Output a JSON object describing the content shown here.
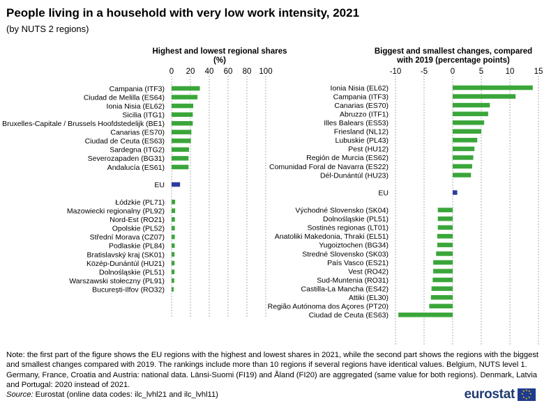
{
  "title": "People living in a household with very low work intensity, 2021",
  "subtitle": "(by NUTS  2 regions)",
  "note": "Note: the first part of the figure shows the EU regions with the highest and lowest shares in 2021, while the second part shows the regions with the biggest and smallest changes compared with 2019. The rankings include more than 10 regions if several regions have identical values. Belgium, NUTS level 1. Germany, France, Croatia and Austria: national data. Länsi-Suomi (FI19) and Åland (FI20) are aggregated (same value for both regions). Denmark, Latvia and Portugal: 2020 instead of 2021.",
  "source_label": "Source:",
  "source_text": " Eurostat (online data codes: ilc_lvhl21 and ilc_lvhl11)",
  "logo_text": "eurostat",
  "colors": {
    "bar": "#3aa63a",
    "eu_bar": "#2e3d9c",
    "grid": "#9a9a9a"
  },
  "chart_data": [
    {
      "type": "bar",
      "orientation": "horizontal",
      "title": "Highest and lowest regional shares",
      "unit_label": "(%)",
      "xlim": [
        0,
        100
      ],
      "ticks": [
        0,
        20,
        40,
        60,
        80,
        100
      ],
      "groups": [
        {
          "categories": [
            "Campania (ITF3)",
            "Ciudad de Melilla (ES64)",
            "Ionia Nisia (EL62)",
            "Sicilia (ITG1)",
            "Bruxelles-Capitale / Brussels Hoofdstedelijk (BE1)",
            "Canarias (ES70)",
            "Ciudad de Ceuta (ES63)",
            "Sardegna (ITG2)",
            "Severozapaden (BG31)",
            "Andalucía (ES61)"
          ],
          "values": [
            30,
            27.5,
            23,
            22.5,
            22.5,
            21,
            20.5,
            18.5,
            18,
            18
          ]
        },
        {
          "categories": [
            "EU"
          ],
          "values": [
            9
          ]
        },
        {
          "categories": [
            "Łódzkie (PL71)",
            "Mazowiecki regionalny (PL92)",
            "Nord-Est (RO21)",
            "Opolskie (PL52)",
            "Střední Morava (CZ07)",
            "Podlaskie (PL84)",
            "Bratislavský kraj (SK01)",
            "Közép-Dunántúl (HU21)",
            "Dolnośląskie (PL51)",
            "Warszawski stołeczny (PL91)",
            "București-Ilfov (RO32)"
          ],
          "values": [
            3.8,
            3.8,
            3.5,
            3.4,
            3.4,
            3.3,
            3.1,
            3.1,
            3.1,
            2.8,
            2.2
          ]
        }
      ]
    },
    {
      "type": "bar",
      "orientation": "horizontal",
      "title": "Biggest and smallest changes, compared with 2019 (percentage points)",
      "xlim": [
        -10,
        15
      ],
      "ticks": [
        -10,
        -5,
        0,
        5,
        10,
        15
      ],
      "groups": [
        {
          "categories": [
            "Ionia Nisia (EL62)",
            "Campania (ITF3)",
            "Canarias (ES70)",
            "Abruzzo (ITF1)",
            "Illes Balears (ES53)",
            "Friesland (NL12)",
            "Lubuskie (PL43)",
            "Pest (HU12)",
            "Región de Murcia (ES62)",
            "Comunidad Foral de Navarra (ES22)",
            "Dél-Dunántúl (HU23)"
          ],
          "values": [
            14,
            11,
            6.5,
            6.2,
            5.5,
            5,
            4.3,
            3.8,
            3.6,
            3.4,
            3.2
          ]
        },
        {
          "categories": [
            "EU"
          ],
          "values": [
            0.8
          ]
        },
        {
          "categories": [
            "Východné Slovensko (SK04)",
            "Dolnośląskie (PL51)",
            "Sostinės regionas (LT01)",
            "Anatoliki Makedonia, Thraki (EL51)",
            "Yugoiztochen (BG34)",
            "Stredné Slovensko (SK03)",
            "País Vasco (ES21)",
            "Vest (RO42)",
            "Sud-Muntenia (RO31)",
            "Castilla-La Mancha (ES42)",
            "Attiki (EL30)",
            "Região Autónoma dos Açores (PT20)",
            "Ciudad de Ceuta (ES63)"
          ],
          "values": [
            -2.6,
            -2.6,
            -2.6,
            -2.7,
            -2.7,
            -2.9,
            -3.4,
            -3.4,
            -3.5,
            -3.7,
            -3.8,
            -4.1,
            -9.5
          ]
        }
      ]
    }
  ]
}
